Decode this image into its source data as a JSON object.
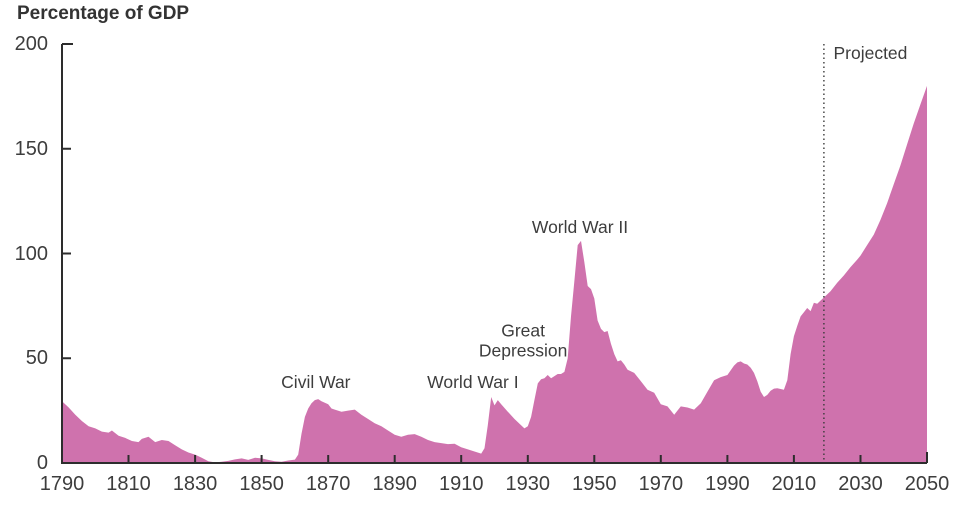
{
  "title": "Percentage of GDP",
  "colors": {
    "area": "#cf72ad",
    "axis": "#2d2d2d",
    "text": "#3d3d3d",
    "divider": "#3b3b3b"
  },
  "chart_data": {
    "type": "area",
    "title": "Percentage of GDP",
    "ylabel": "Percentage of GDP",
    "xlabel": "",
    "xlim": [
      1790,
      2050
    ],
    "ylim": [
      0,
      200
    ],
    "grid": false,
    "x_ticks": [
      1790,
      1810,
      1830,
      1850,
      1870,
      1890,
      1910,
      1930,
      1950,
      1970,
      1990,
      2010,
      2030,
      2050
    ],
    "y_ticks": [
      0,
      50,
      100,
      150,
      200
    ],
    "projection": {
      "divider_year": 2019,
      "label": "Projected",
      "label_year": 2033,
      "label_value": 195
    },
    "annotations": [
      {
        "label": "Civil War",
        "year": 1866.3,
        "value": 38
      },
      {
        "label": "World War I",
        "year": 1913.5,
        "value": 38
      },
      {
        "label": "Great\nDepression",
        "year": 1928.6,
        "value": 58
      },
      {
        "label": "World War II",
        "year": 1945.7,
        "value": 112
      }
    ],
    "points": [
      [
        1790,
        29.5
      ],
      [
        1792,
        26.5
      ],
      [
        1794,
        23
      ],
      [
        1796,
        20
      ],
      [
        1798,
        17.5
      ],
      [
        1800,
        16.5
      ],
      [
        1802,
        15
      ],
      [
        1804,
        14.5
      ],
      [
        1805,
        15.5
      ],
      [
        1807,
        13
      ],
      [
        1809,
        12
      ],
      [
        1811,
        10.5
      ],
      [
        1813,
        10
      ],
      [
        1814,
        11.5
      ],
      [
        1816,
        12.5
      ],
      [
        1818,
        10
      ],
      [
        1820,
        11
      ],
      [
        1822,
        10.5
      ],
      [
        1824,
        8.5
      ],
      [
        1826,
        6.5
      ],
      [
        1828,
        5
      ],
      [
        1830,
        4
      ],
      [
        1832,
        2.5
      ],
      [
        1834,
        0.8
      ],
      [
        1836,
        0.3
      ],
      [
        1838,
        0.6
      ],
      [
        1840,
        1
      ],
      [
        1842,
        1.7
      ],
      [
        1844,
        2.2
      ],
      [
        1846,
        1.5
      ],
      [
        1848,
        2.5
      ],
      [
        1850,
        2.2
      ],
      [
        1852,
        1.5
      ],
      [
        1854,
        0.8
      ],
      [
        1856,
        0.6
      ],
      [
        1858,
        1.2
      ],
      [
        1860,
        1.6
      ],
      [
        1861,
        4
      ],
      [
        1862,
        14
      ],
      [
        1863,
        22
      ],
      [
        1864,
        26
      ],
      [
        1865,
        28.5
      ],
      [
        1866,
        30
      ],
      [
        1867,
        30.5
      ],
      [
        1868,
        29.5
      ],
      [
        1870,
        28
      ],
      [
        1871,
        26
      ],
      [
        1872,
        25.5
      ],
      [
        1874,
        24.5
      ],
      [
        1876,
        25
      ],
      [
        1878,
        25.5
      ],
      [
        1880,
        23
      ],
      [
        1882,
        21
      ],
      [
        1884,
        19
      ],
      [
        1886,
        17.5
      ],
      [
        1888,
        15.5
      ],
      [
        1890,
        13.5
      ],
      [
        1892,
        12.5
      ],
      [
        1894,
        13.5
      ],
      [
        1896,
        13.8
      ],
      [
        1898,
        12.5
      ],
      [
        1900,
        11
      ],
      [
        1902,
        10
      ],
      [
        1904,
        9.5
      ],
      [
        1906,
        9
      ],
      [
        1908,
        9.2
      ],
      [
        1910,
        7.5
      ],
      [
        1912,
        6.5
      ],
      [
        1914,
        5.5
      ],
      [
        1916,
        4.5
      ],
      [
        1917,
        7
      ],
      [
        1918,
        18
      ],
      [
        1919,
        31.5
      ],
      [
        1920,
        27.5
      ],
      [
        1921,
        30
      ],
      [
        1922,
        28
      ],
      [
        1924,
        24.5
      ],
      [
        1926,
        21
      ],
      [
        1928,
        18
      ],
      [
        1929,
        16.5
      ],
      [
        1930,
        17.5
      ],
      [
        1931,
        22
      ],
      [
        1932,
        30
      ],
      [
        1933,
        38
      ],
      [
        1934,
        40
      ],
      [
        1935,
        40.5
      ],
      [
        1936,
        42
      ],
      [
        1937,
        40.5
      ],
      [
        1938,
        41.5
      ],
      [
        1939,
        42.5
      ],
      [
        1940,
        42.5
      ],
      [
        1941,
        43.5
      ],
      [
        1942,
        50
      ],
      [
        1943,
        70
      ],
      [
        1944,
        86.5
      ],
      [
        1945,
        104
      ],
      [
        1946,
        106
      ],
      [
        1947,
        96
      ],
      [
        1948,
        84.5
      ],
      [
        1949,
        83
      ],
      [
        1950,
        78.5
      ],
      [
        1951,
        68
      ],
      [
        1952,
        64
      ],
      [
        1953,
        62.5
      ],
      [
        1954,
        63
      ],
      [
        1955,
        57
      ],
      [
        1956,
        52
      ],
      [
        1957,
        48.5
      ],
      [
        1958,
        49
      ],
      [
        1959,
        47
      ],
      [
        1960,
        44.5
      ],
      [
        1962,
        43
      ],
      [
        1964,
        39
      ],
      [
        1966,
        35
      ],
      [
        1968,
        33.5
      ],
      [
        1970,
        28
      ],
      [
        1972,
        27
      ],
      [
        1974,
        23
      ],
      [
        1976,
        27
      ],
      [
        1978,
        26.5
      ],
      [
        1980,
        25.5
      ],
      [
        1982,
        28.5
      ],
      [
        1984,
        34
      ],
      [
        1986,
        39.5
      ],
      [
        1988,
        41
      ],
      [
        1990,
        42
      ],
      [
        1992,
        46.5
      ],
      [
        1993,
        48
      ],
      [
        1994,
        48.5
      ],
      [
        1995,
        47.5
      ],
      [
        1996,
        47
      ],
      [
        1997,
        45.5
      ],
      [
        1998,
        43
      ],
      [
        1999,
        39
      ],
      [
        2000,
        34
      ],
      [
        2001,
        31.5
      ],
      [
        2002,
        32.5
      ],
      [
        2003,
        34.5
      ],
      [
        2004,
        35.5
      ],
      [
        2005,
        35.7
      ],
      [
        2006,
        35.3
      ],
      [
        2007,
        35
      ],
      [
        2008,
        39.5
      ],
      [
        2009,
        52
      ],
      [
        2010,
        60.5
      ],
      [
        2011,
        65.5
      ],
      [
        2012,
        70
      ],
      [
        2013,
        72
      ],
      [
        2014,
        74
      ],
      [
        2015,
        72.5
      ],
      [
        2016,
        76.5
      ],
      [
        2017,
        76
      ],
      [
        2018,
        77.5
      ],
      [
        2019,
        79
      ],
      [
        2021,
        82
      ],
      [
        2023,
        86
      ],
      [
        2025,
        89.5
      ],
      [
        2027,
        93.5
      ],
      [
        2029,
        97
      ],
      [
        2030,
        99
      ],
      [
        2032,
        104
      ],
      [
        2034,
        109
      ],
      [
        2036,
        116
      ],
      [
        2038,
        124
      ],
      [
        2040,
        133
      ],
      [
        2042,
        142
      ],
      [
        2044,
        152
      ],
      [
        2046,
        162
      ],
      [
        2048,
        171
      ],
      [
        2050,
        180
      ]
    ]
  }
}
